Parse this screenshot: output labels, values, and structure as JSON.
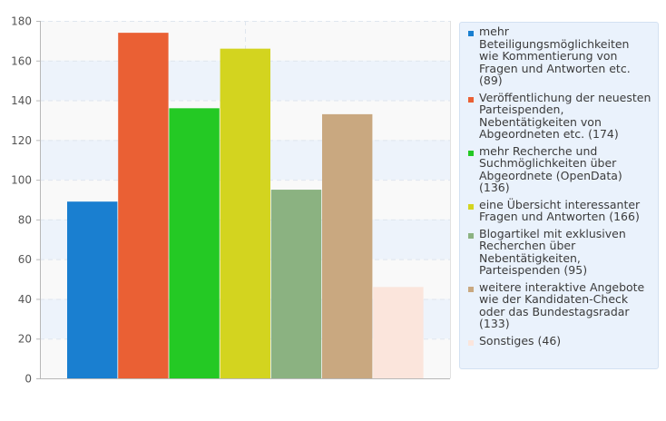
{
  "chart_data": {
    "type": "bar",
    "title": "",
    "xlabel": "",
    "ylabel": "",
    "ylim": [
      0,
      180
    ],
    "yticks": [
      0,
      20,
      40,
      60,
      80,
      100,
      120,
      140,
      160,
      180
    ],
    "grid": true,
    "legend_position": "right",
    "series": [
      {
        "name": "mehr Beteiligungsmöglichkeiten wie Kommentierung von Fragen und Antworten etc. (89)",
        "value": 89,
        "color": "#1a7fd0"
      },
      {
        "name": "Veröffentlichung der neuesten Parteispenden, Nebentätigkeiten von Abgeordneten etc. (174)",
        "value": 174,
        "color": "#ea6034"
      },
      {
        "name": "mehr Recherche und Suchmöglichkeiten über Abgeordnete (OpenData) (136)",
        "value": 136,
        "color": "#24c924"
      },
      {
        "name": "eine Übersicht interessanter Fragen und Antworten (166)",
        "value": 166,
        "color": "#d3d41f"
      },
      {
        "name": "Blogartikel mit exklusiven Recherchen über Nebentätigkeiten, Parteispenden (95)",
        "value": 95,
        "color": "#8bb281"
      },
      {
        "name": "weitere interaktive Angebote wie der Kandidaten-Check oder das Bundestagsradar (133)",
        "value": 133,
        "color": "#c9a880"
      },
      {
        "name": "Sonstiges (46)",
        "value": 46,
        "color": "#fbe5dc"
      }
    ]
  }
}
